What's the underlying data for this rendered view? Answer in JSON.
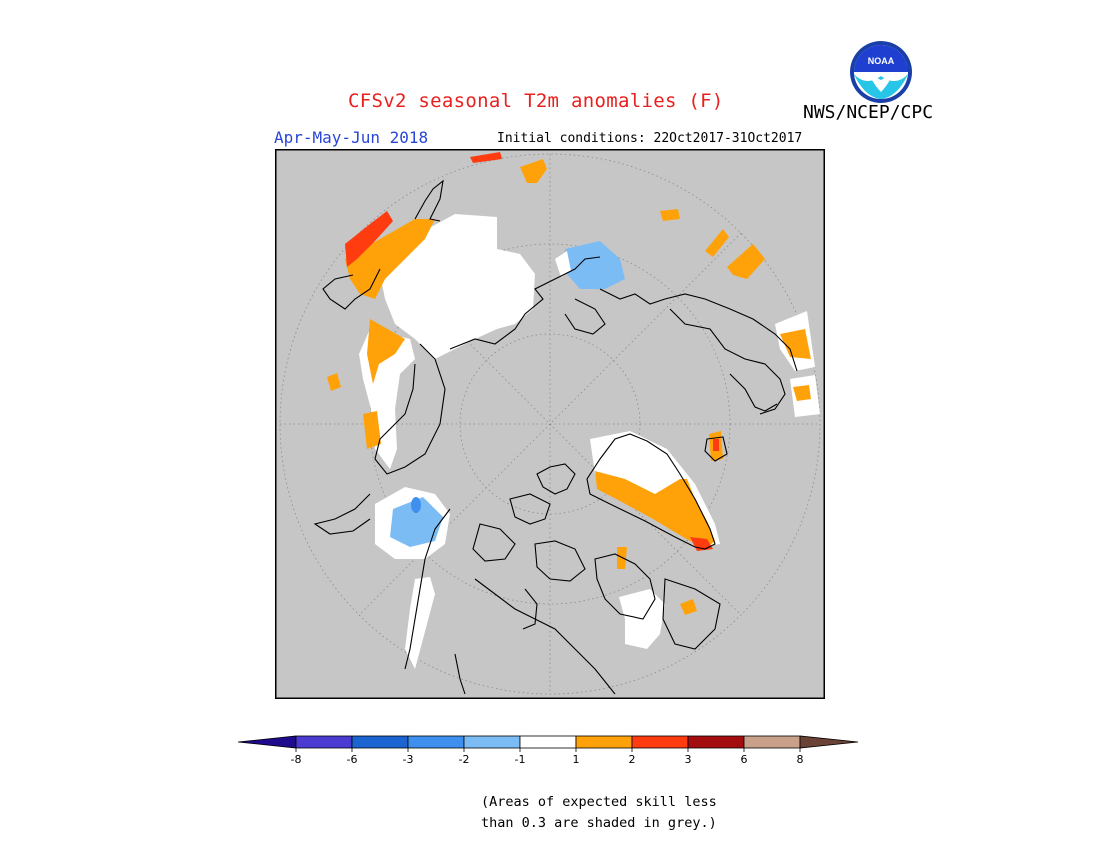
{
  "title": "CFSv2 seasonal T2m anomalies (F)",
  "agency": "NWS/NCEP/CPC",
  "logo_text": "NOAA",
  "season": "Apr-May-Jun 2018",
  "initial_conditions": "Initial conditions: 22Oct2017-31Oct2017",
  "note_line1": "(Areas of expected skill less",
  "note_line2": "than 0.3 are shaded in grey.)",
  "colorbar": {
    "bins": [
      {
        "range": "< -8",
        "color": "#1e0a8c"
      },
      {
        "range": "-8 to -6",
        "color": "#4b3bd1"
      },
      {
        "range": "-6 to -3",
        "color": "#1b64d2"
      },
      {
        "range": "-3 to -2",
        "color": "#3f8fee"
      },
      {
        "range": "-2 to -1",
        "color": "#7bbcf5"
      },
      {
        "range": "-1 to 1",
        "color": "#ffffff"
      },
      {
        "range": "1 to 2",
        "color": "#ffa20a"
      },
      {
        "range": "2 to 3",
        "color": "#ff3b10"
      },
      {
        "range": "3 to 6",
        "color": "#a30d10"
      },
      {
        "range": "6 to 8",
        "color": "#c9a08a"
      },
      {
        "range": "> 8",
        "color": "#6b4236"
      }
    ],
    "tick_labels": [
      "-8",
      "-6",
      "-3",
      "-2",
      "-1",
      "1",
      "2",
      "3",
      "6",
      "8"
    ]
  },
  "colors": {
    "no_skill_grey": "#c6c6c6",
    "title_red": "#e8201e",
    "season_blue": "#2946d8",
    "coast": "#000000"
  }
}
